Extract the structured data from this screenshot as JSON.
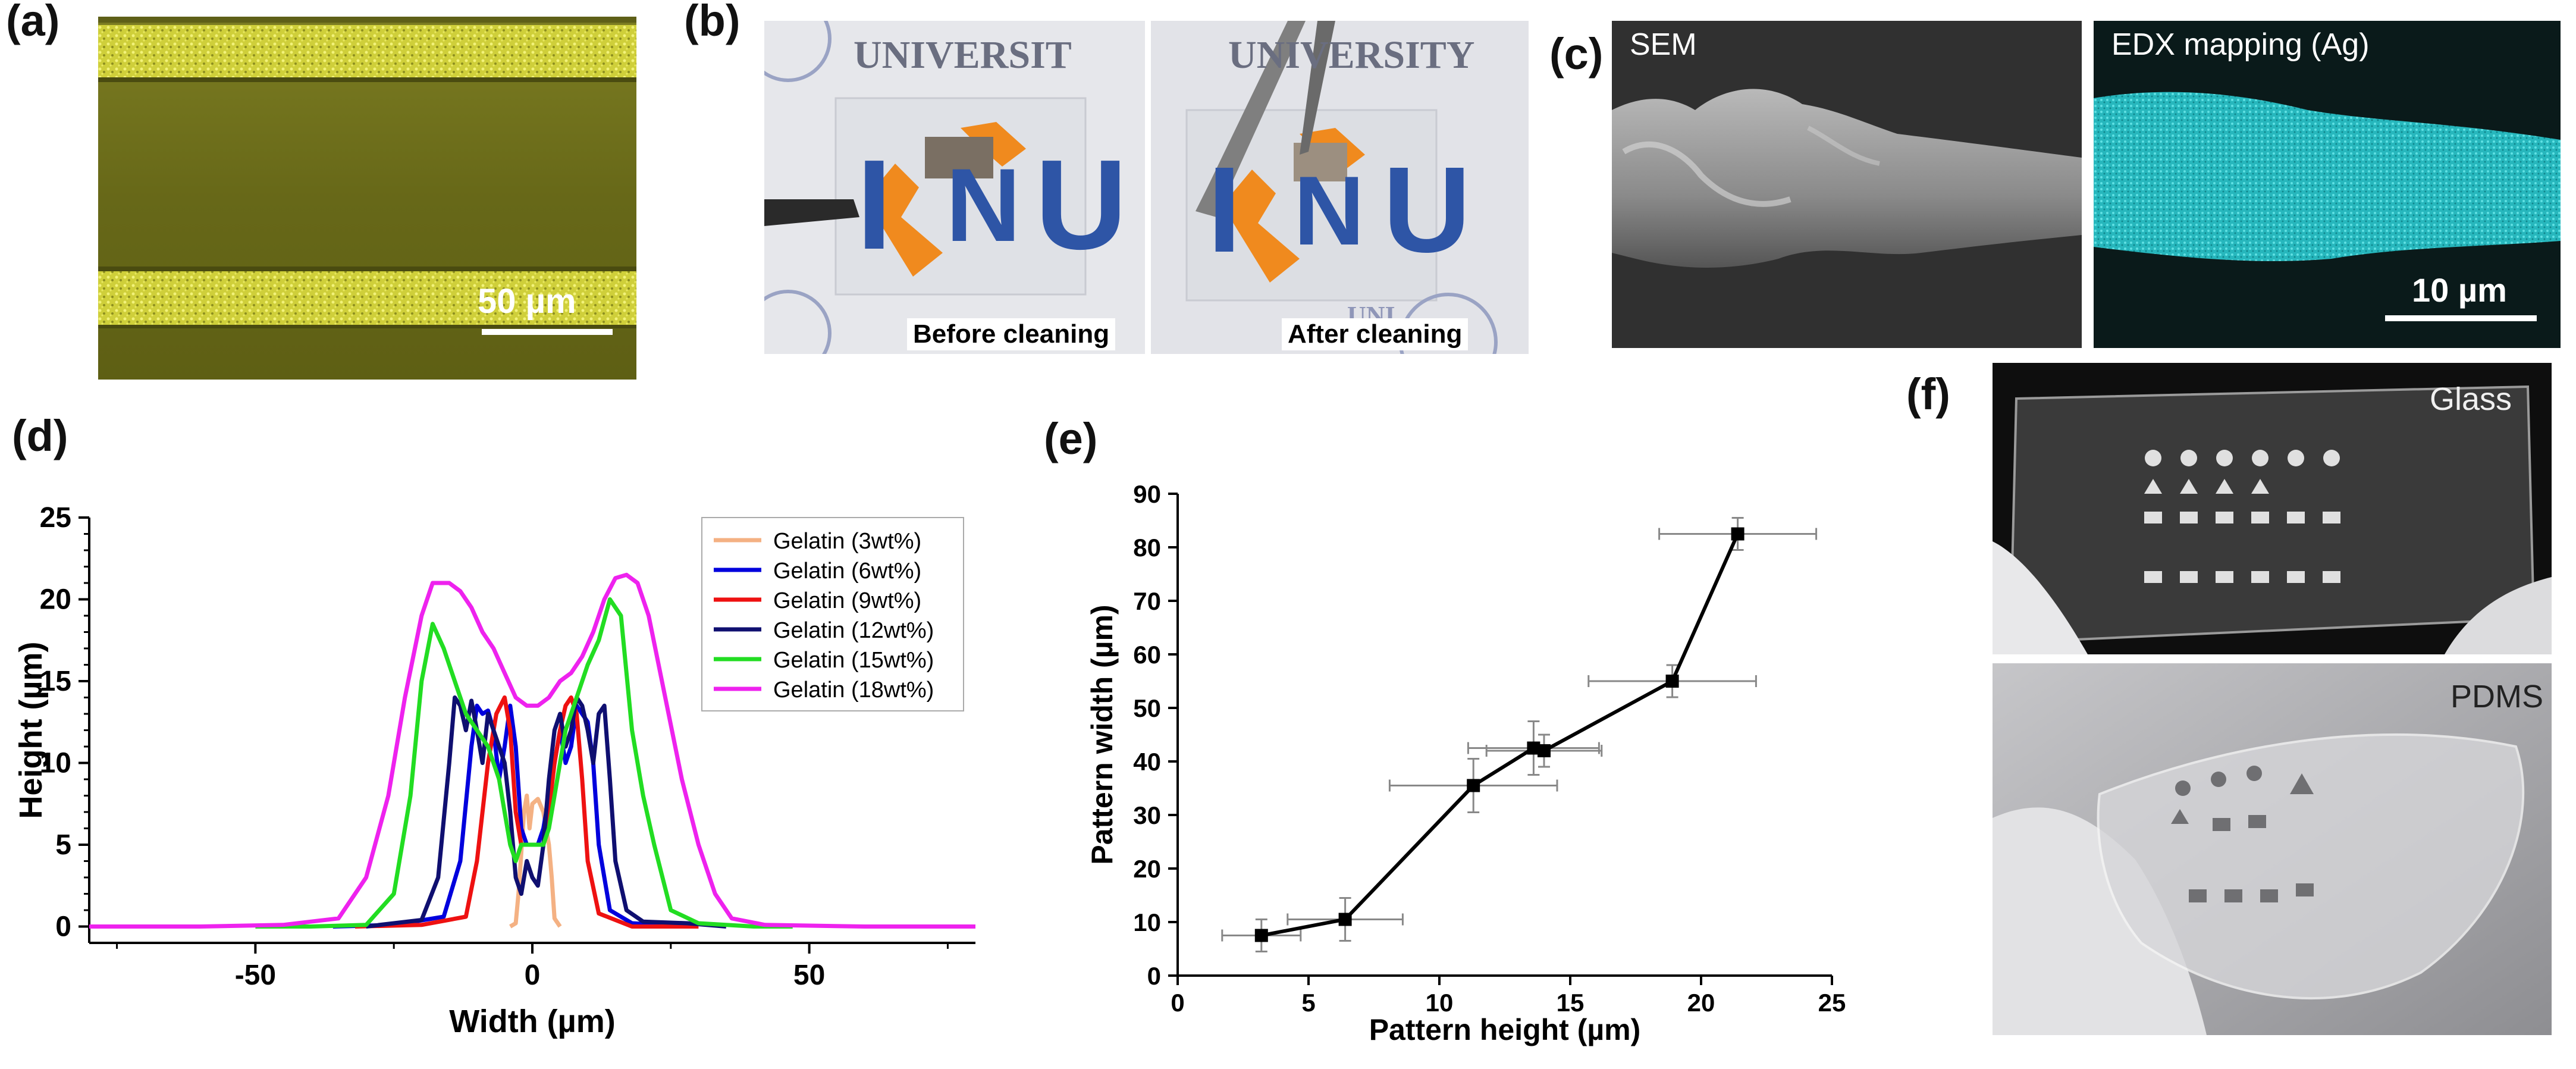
{
  "panel_labels": {
    "a": "(a)",
    "b": "(b)",
    "c": "(c)",
    "d": "(d)",
    "e": "(e)",
    "f": "(f)"
  },
  "panel_a": {
    "scale_bar": "50 µm"
  },
  "panel_b": {
    "sign_text_left": "UNIVERSIT",
    "sign_text_right": "UNIVERSITY",
    "logo_letters": [
      "I",
      "N",
      "U"
    ],
    "left_caption": "Before cleaning",
    "right_caption": "After cleaning",
    "seal_bottom_right": "UNI"
  },
  "panel_c": {
    "sem_label": "SEM",
    "edx_label": "EDX mapping (Ag)",
    "scale_bar": "10 µm"
  },
  "panel_f": {
    "top_label": "Glass",
    "bottom_label": "PDMS"
  },
  "colors": {
    "micrograph_bg": "#6a6b1a",
    "micrograph_line": "#d8d84a",
    "edx_cyan": "#2ec7cc",
    "logo_blue": "#2e55a6",
    "logo_orange": "#f08a1e",
    "sem_gray": "#8a8a8a"
  },
  "chart_data": [
    {
      "panel": "d",
      "type": "line",
      "xlabel": "Width (µm)",
      "ylabel": "Height (µm)",
      "xlim": [
        -80,
        80
      ],
      "ylim": [
        -1,
        25
      ],
      "xticks": [
        -50,
        0,
        50
      ],
      "yticks": [
        0,
        5,
        10,
        15,
        20,
        25
      ],
      "series": [
        {
          "name": "Gelatin (3wt%)",
          "color": "#f4b183",
          "points": [
            [
              -4,
              0
            ],
            [
              -3,
              0.2
            ],
            [
              -2.5,
              2
            ],
            [
              -2,
              4.5
            ],
            [
              -1.5,
              7
            ],
            [
              -1,
              8
            ],
            [
              -0.5,
              6
            ],
            [
              0,
              7.5
            ],
            [
              1,
              7.8
            ],
            [
              2,
              7
            ],
            [
              3,
              5
            ],
            [
              3.5,
              3
            ],
            [
              4,
              0.5
            ],
            [
              5,
              0
            ]
          ]
        },
        {
          "name": "Gelatin (6wt%)",
          "color": "#0000dd",
          "points": [
            [
              -36,
              0
            ],
            [
              -25,
              0.1
            ],
            [
              -16,
              0.6
            ],
            [
              -13,
              4
            ],
            [
              -11,
              11
            ],
            [
              -10,
              13.5
            ],
            [
              -9,
              13
            ],
            [
              -8,
              13.2
            ],
            [
              -7,
              12
            ],
            [
              -6,
              9
            ],
            [
              -5,
              11
            ],
            [
              -4,
              13.5
            ],
            [
              -3,
              11
            ],
            [
              -2,
              6
            ],
            [
              -1,
              5
            ],
            [
              0,
              5
            ],
            [
              1,
              5
            ],
            [
              2,
              6
            ],
            [
              3,
              8
            ],
            [
              4,
              10
            ],
            [
              5,
              12
            ],
            [
              6,
              10
            ],
            [
              7,
              11
            ],
            [
              8,
              13.5
            ],
            [
              9,
              13
            ],
            [
              10,
              12.5
            ],
            [
              11,
              10
            ],
            [
              12,
              5
            ],
            [
              14,
              1
            ],
            [
              18,
              0.2
            ],
            [
              28,
              0
            ]
          ]
        },
        {
          "name": "Gelatin (9wt%)",
          "color": "#ee1111",
          "points": [
            [
              -32,
              0
            ],
            [
              -20,
              0.1
            ],
            [
              -12,
              0.6
            ],
            [
              -10,
              4
            ],
            [
              -8,
              10
            ],
            [
              -6.5,
              13
            ],
            [
              -5,
              14
            ],
            [
              -4,
              12
            ],
            [
              -3,
              7
            ],
            [
              -2,
              5
            ],
            [
              0,
              5
            ],
            [
              2,
              5
            ],
            [
              3,
              7
            ],
            [
              4,
              10
            ],
            [
              5,
              12
            ],
            [
              6,
              13.5
            ],
            [
              7,
              14
            ],
            [
              8,
              13
            ],
            [
              9,
              9
            ],
            [
              10,
              4
            ],
            [
              12,
              0.8
            ],
            [
              18,
              0
            ],
            [
              30,
              0
            ]
          ]
        },
        {
          "name": "Gelatin (12wt%)",
          "color": "#0f0f70",
          "points": [
            [
              -30,
              0
            ],
            [
              -20,
              0.4
            ],
            [
              -17,
              3
            ],
            [
              -15,
              10
            ],
            [
              -14,
              14
            ],
            [
              -13,
              13.5
            ],
            [
              -12,
              12
            ],
            [
              -11,
              13.8
            ],
            [
              -10,
              12
            ],
            [
              -9,
              10
            ],
            [
              -8,
              13
            ],
            [
              -7,
              12
            ],
            [
              -6,
              11
            ],
            [
              -5,
              10
            ],
            [
              -4,
              7
            ],
            [
              -3,
              3
            ],
            [
              -2,
              2
            ],
            [
              -1,
              4
            ],
            [
              0,
              3
            ],
            [
              1,
              2.5
            ],
            [
              2,
              5
            ],
            [
              3,
              9
            ],
            [
              4,
              12
            ],
            [
              5,
              13
            ],
            [
              6,
              11
            ],
            [
              7,
              12
            ],
            [
              8,
              14
            ],
            [
              9,
              13.5
            ],
            [
              10,
              12
            ],
            [
              11,
              10
            ],
            [
              12,
              13
            ],
            [
              13,
              13.5
            ],
            [
              14,
              9
            ],
            [
              15,
              4
            ],
            [
              17,
              1
            ],
            [
              20,
              0.3
            ],
            [
              28,
              0.2
            ],
            [
              35,
              0
            ]
          ]
        },
        {
          "name": "Gelatin (15wt%)",
          "color": "#22dd22",
          "points": [
            [
              -50,
              0
            ],
            [
              -40,
              0
            ],
            [
              -30,
              0.1
            ],
            [
              -25,
              2
            ],
            [
              -22,
              8
            ],
            [
              -20,
              15
            ],
            [
              -18,
              18.5
            ],
            [
              -16,
              17
            ],
            [
              -14,
              15
            ],
            [
              -12,
              13
            ],
            [
              -10,
              12
            ],
            [
              -8,
              11
            ],
            [
              -7,
              10
            ],
            [
              -6,
              9
            ],
            [
              -5,
              7
            ],
            [
              -4,
              5
            ],
            [
              -3,
              4
            ],
            [
              -2,
              5
            ],
            [
              0,
              5
            ],
            [
              2,
              5
            ],
            [
              3,
              6
            ],
            [
              4,
              8
            ],
            [
              5,
              10
            ],
            [
              6,
              12
            ],
            [
              8,
              14
            ],
            [
              10,
              16
            ],
            [
              12,
              17.5
            ],
            [
              14,
              20
            ],
            [
              16,
              19
            ],
            [
              18,
              12
            ],
            [
              20,
              8
            ],
            [
              22,
              5
            ],
            [
              25,
              1
            ],
            [
              30,
              0.2
            ],
            [
              40,
              0
            ],
            [
              47,
              0
            ]
          ]
        },
        {
          "name": "Gelatin (18wt%)",
          "color": "#ee22ee",
          "points": [
            [
              -80,
              0
            ],
            [
              -60,
              0
            ],
            [
              -45,
              0.1
            ],
            [
              -35,
              0.5
            ],
            [
              -30,
              3
            ],
            [
              -26,
              8
            ],
            [
              -23,
              14
            ],
            [
              -20,
              19
            ],
            [
              -18,
              21
            ],
            [
              -15,
              21
            ],
            [
              -13,
              20.5
            ],
            [
              -11,
              19.5
            ],
            [
              -9,
              18
            ],
            [
              -7,
              17
            ],
            [
              -5,
              15.5
            ],
            [
              -3,
              14
            ],
            [
              -1,
              13.5
            ],
            [
              1,
              13.5
            ],
            [
              3,
              14
            ],
            [
              5,
              15
            ],
            [
              7,
              15.5
            ],
            [
              9,
              16.5
            ],
            [
              11,
              18
            ],
            [
              13,
              20
            ],
            [
              15,
              21.3
            ],
            [
              17,
              21.5
            ],
            [
              19,
              21
            ],
            [
              21,
              19
            ],
            [
              24,
              14
            ],
            [
              27,
              9
            ],
            [
              30,
              5
            ],
            [
              33,
              2
            ],
            [
              36,
              0.5
            ],
            [
              42,
              0.1
            ],
            [
              60,
              0
            ],
            [
              80,
              0
            ]
          ]
        }
      ]
    },
    {
      "panel": "e",
      "type": "scatter",
      "xlabel": "Pattern height (µm)",
      "ylabel": "Pattern width (µm)",
      "xlim": [
        0,
        25
      ],
      "ylim": [
        0,
        90
      ],
      "xticks": [
        0,
        5,
        10,
        15,
        20,
        25
      ],
      "yticks": [
        0,
        10,
        20,
        30,
        40,
        50,
        60,
        70,
        80,
        90
      ],
      "points": [
        {
          "x": 3.2,
          "y": 7.5,
          "xerr": 1.5,
          "yerr": 3
        },
        {
          "x": 6.4,
          "y": 10.5,
          "xerr": 2.2,
          "yerr": 4
        },
        {
          "x": 11.3,
          "y": 35.5,
          "xerr": 3.2,
          "yerr": 5
        },
        {
          "x": 13.6,
          "y": 42.5,
          "xerr": 2.5,
          "yerr": 5
        },
        {
          "x": 14.0,
          "y": 42.0,
          "xerr": 2.2,
          "yerr": 3
        },
        {
          "x": 18.9,
          "y": 55.0,
          "xerr": 3.2,
          "yerr": 3
        },
        {
          "x": 21.4,
          "y": 82.5,
          "xerr": 3.0,
          "yerr": 3
        }
      ]
    }
  ]
}
